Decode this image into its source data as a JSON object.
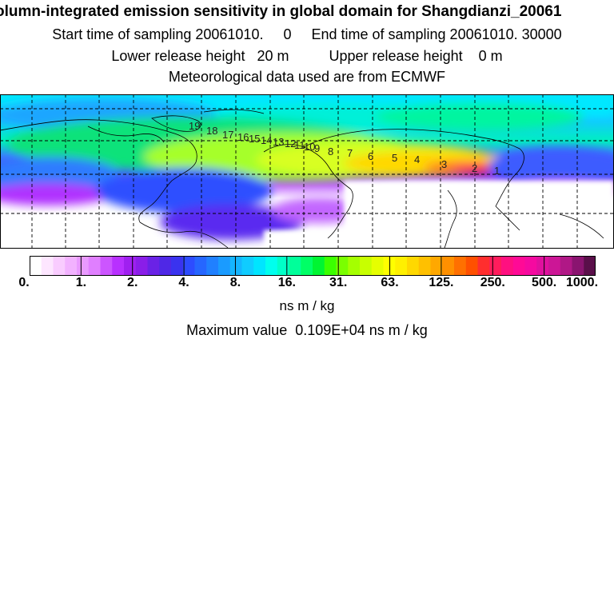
{
  "header": {
    "title": "olumn-integrated emission sensitivity in global domain for Shangdianzi_20061",
    "sampling": "Start time of sampling 20061010.     0     End time of sampling 20061010. 30000",
    "release": "Lower release height   20 m          Upper release height    0 m",
    "met": "Meteorological data used are from ECMWF"
  },
  "map": {
    "trajectory_labels": [
      "1",
      "2",
      "3",
      "4",
      "5",
      "6",
      "7",
      "8",
      "9",
      "10",
      "11",
      "12",
      "13",
      "14",
      "15",
      "16",
      "17",
      "18",
      "19"
    ],
    "colors": {
      "ocean_high": "#00f0ff",
      "plume_core": "#ff3030",
      "low": "#8a2be2"
    }
  },
  "colorbar": {
    "tick_labels": [
      "0.",
      "1.",
      "2.",
      "4.",
      "8.",
      "16.",
      "31.",
      "63.",
      "125.",
      "250.",
      "500.",
      "1000."
    ],
    "colors": [
      "#ffffff",
      "#fde6ff",
      "#f9ccff",
      "#f2b2ff",
      "#e99aff",
      "#e07fff",
      "#cc55ff",
      "#b830ff",
      "#a020f0",
      "#8a1ee8",
      "#6a22e6",
      "#4f28e6",
      "#3a33ef",
      "#2d4cff",
      "#2666ff",
      "#2080ff",
      "#1a9bff",
      "#15b5ff",
      "#10ccff",
      "#00e5ff",
      "#00ffee",
      "#00ffc8",
      "#00ff9a",
      "#00ff66",
      "#00f532",
      "#3bff00",
      "#7aff00",
      "#a5ff00",
      "#c8ff00",
      "#e6ff00",
      "#ffff00",
      "#fff000",
      "#ffd800",
      "#ffc000",
      "#ffa800",
      "#ff9000",
      "#ff7000",
      "#ff5000",
      "#ff2e2e",
      "#ff1c5c",
      "#ff1080",
      "#ff0a96",
      "#f50aa0",
      "#e0109e",
      "#cc1696",
      "#b01886",
      "#8a1470",
      "#5a0f4a"
    ]
  },
  "units": "ns m / kg",
  "maximum": "Maximum value  0.109E+04 ns m / kg"
}
